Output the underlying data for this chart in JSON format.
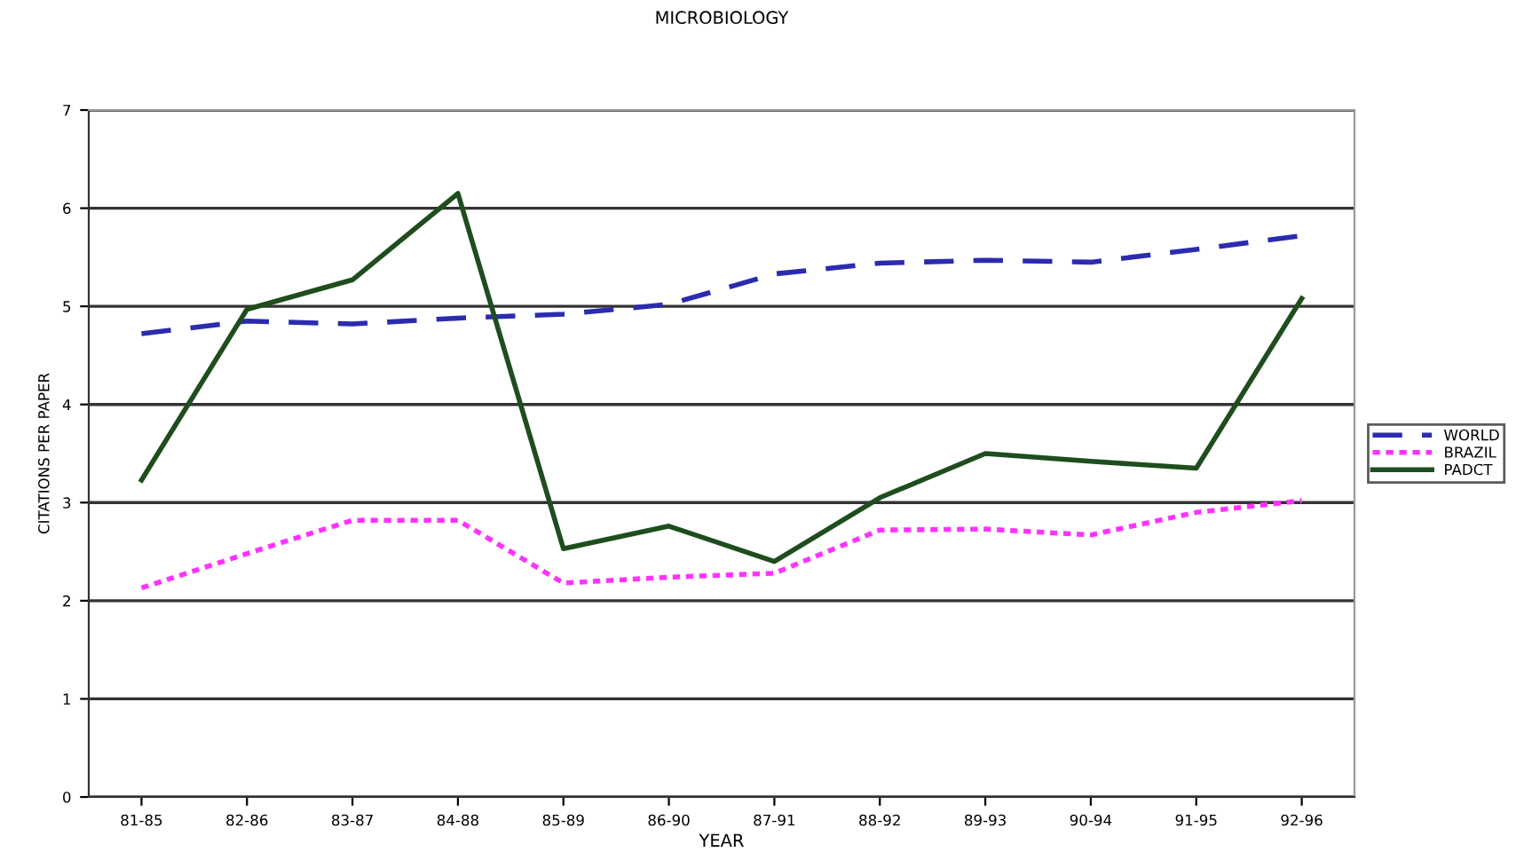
{
  "chart_data": {
    "type": "line",
    "title": "MICROBIOLOGY",
    "xlabel": "YEAR",
    "ylabel": "CITATIONS PER PAPER",
    "categories": [
      "81-85",
      "82-86",
      "83-87",
      "84-88",
      "85-89",
      "86-90",
      "87-91",
      "88-92",
      "89-93",
      "90-94",
      "91-95",
      "92-96"
    ],
    "series": [
      {
        "name": "WORLD",
        "color": "#2b2bb0",
        "line_style": "dashed",
        "values": [
          4.72,
          4.85,
          4.82,
          4.88,
          4.92,
          5.02,
          5.33,
          5.44,
          5.47,
          5.45,
          5.58,
          5.72
        ]
      },
      {
        "name": "BRAZIL",
        "color": "#ff33ff",
        "line_style": "dotted",
        "values": [
          2.13,
          2.48,
          2.82,
          2.82,
          2.18,
          2.24,
          2.28,
          2.72,
          2.73,
          2.67,
          2.9,
          3.02
        ]
      },
      {
        "name": "PADCT",
        "color": "#1e4d1e",
        "line_style": "solid",
        "values": [
          3.23,
          4.97,
          5.27,
          6.15,
          2.53,
          2.76,
          2.4,
          3.05,
          3.5,
          3.42,
          3.35,
          5.08
        ]
      }
    ],
    "ylim": [
      0,
      7
    ],
    "yticks": [
      0,
      1,
      2,
      3,
      4,
      5,
      6,
      7
    ],
    "grid": "y",
    "legend": "right",
    "marker": "none"
  }
}
